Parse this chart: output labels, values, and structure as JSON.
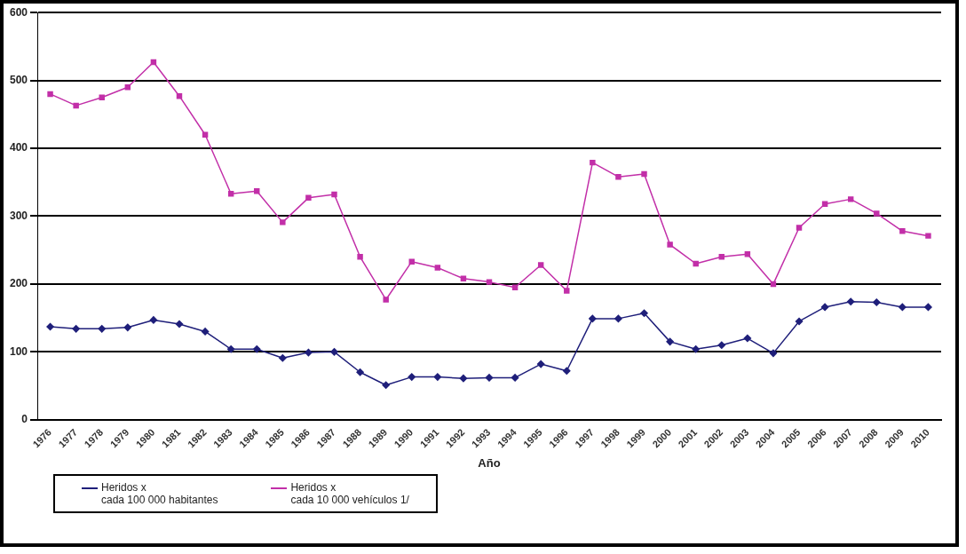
{
  "chart_data": {
    "type": "line",
    "xlabel": "Año",
    "categories": [
      "1976",
      "1977",
      "1978",
      "1979",
      "1980",
      "1981",
      "1982",
      "1983",
      "1984",
      "1985",
      "1986",
      "1987",
      "1988",
      "1989",
      "1990",
      "1991",
      "1992",
      "1993",
      "1994",
      "1995",
      "1996",
      "1997",
      "1998",
      "1999",
      "2000",
      "2001",
      "2002",
      "2003",
      "2004",
      "2005",
      "2006",
      "2007",
      "2008",
      "2009",
      "2010"
    ],
    "series": [
      {
        "name": "Heridos x\ncada 100 000 habitantes",
        "color": "#1f1f7a",
        "marker": "diamond",
        "values": [
          137,
          134,
          134,
          136,
          147,
          141,
          130,
          104,
          104,
          91,
          99,
          100,
          70,
          51,
          63,
          63,
          61,
          62,
          62,
          82,
          72,
          149,
          149,
          157,
          115,
          104,
          110,
          120,
          98,
          145,
          166,
          174,
          173,
          166,
          166
        ]
      },
      {
        "name": "Heridos x\ncada 10 000 vehículos  1/",
        "color": "#c22fa8",
        "marker": "square",
        "values": [
          480,
          463,
          475,
          490,
          527,
          477,
          420,
          333,
          337,
          291,
          327,
          332,
          240,
          177,
          233,
          224,
          208,
          203,
          195,
          228,
          190,
          379,
          358,
          362,
          258,
          230,
          240,
          244,
          200,
          283,
          318,
          325,
          304,
          278,
          271
        ]
      }
    ],
    "ylim": [
      0,
      600
    ],
    "yticks": [
      0,
      100,
      200,
      300,
      400,
      500,
      600
    ],
    "grid": "y",
    "legend": "bottom left"
  }
}
